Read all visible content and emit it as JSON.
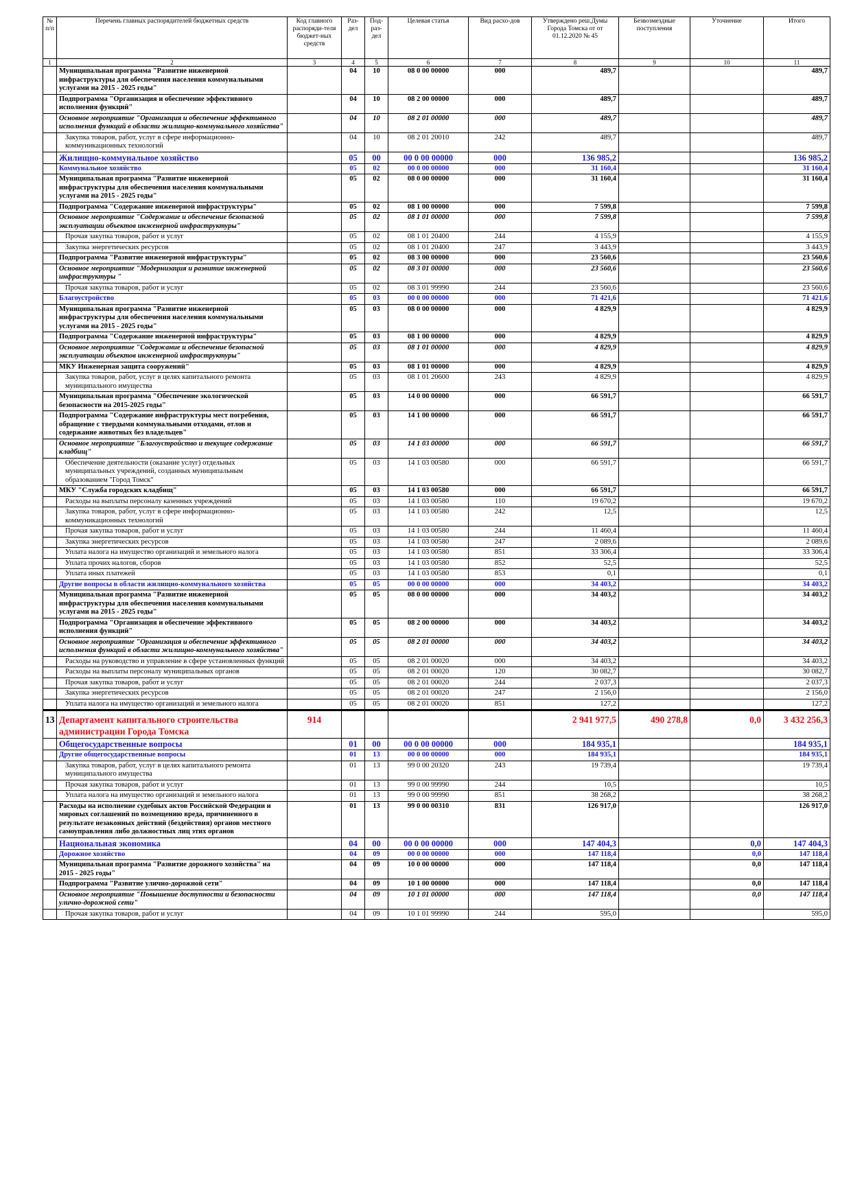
{
  "table": {
    "header": [
      "№ п/п",
      "Перечень главных распорядителей бюджетных средств",
      "Код главного распоряди-теля бюджет-ных средств",
      "Раз-дел",
      "Под-раз-дел",
      "Целевая статья",
      "Вид расхо-дов",
      "Утверждено реш.Думы Города Томска от от 01.12.2020 № 45",
      "Безвозмездные поступления",
      "Уточнение",
      "Итого"
    ],
    "column_numbers": [
      1,
      2,
      3,
      4,
      5,
      6,
      7,
      8,
      9,
      10,
      11
    ],
    "rows": [
      [
        null,
        "Муниципальная программа \"Развитие инженерной инфраструктуры для обеспечения населения коммунальными услугами на 2015 - 2025 годы\"",
        null,
        "04",
        "10",
        "08 0 00 00000",
        "000",
        "489,7",
        null,
        null,
        "489,7"
      ],
      [
        null,
        "Подпрограмма \"Организация и обеспечение эффективного исполнения функций\"",
        null,
        "04",
        "10",
        "08 2 00 00000",
        "000",
        "489,7",
        null,
        null,
        "489,7"
      ],
      [
        null,
        "Основное мероприятие \"Организация и обеспечение эффективного исполнения функций в области жилищно-коммунального хозяйства\"",
        null,
        "04",
        "10",
        "08 2 01 00000",
        "000",
        "489,7",
        null,
        null,
        "489,7"
      ],
      [
        null,
        "Закупка товаров, работ, услуг в сфере информационно-коммуникационных технологий",
        null,
        "04",
        "10",
        "08 2 01 20010",
        "242",
        "489,7",
        null,
        null,
        "489,7"
      ],
      [
        null,
        "Жилищно-коммунальное хозяйство",
        null,
        "05",
        "00",
        "00 0 00 00000",
        "000",
        "136 985,2",
        null,
        null,
        "136 985,2"
      ],
      [
        null,
        "Коммунальное хозяйство",
        null,
        "05",
        "02",
        "00 0 00 00000",
        "000",
        "31 160,4",
        null,
        null,
        "31 160,4"
      ],
      [
        null,
        "Муниципальная программа \"Развитие инженерной инфраструктуры для обеспечения населения коммунальными услугами на 2015 - 2025 годы\"",
        null,
        "05",
        "02",
        "08 0 00 00000",
        "000",
        "31 160,4",
        null,
        null,
        "31 160,4"
      ],
      [
        null,
        "Подпрограмма \"Содержание инженерной инфраструктуры\"",
        null,
        "05",
        "02",
        "08 1 00 00000",
        "000",
        "7 599,8",
        null,
        null,
        "7 599,8"
      ],
      [
        null,
        "Основное мероприятие \"Содержание и обеспечение безопасной эксплуатации объектов инженерной инфраструктуры\"",
        null,
        "05",
        "02",
        "08 1 01 00000",
        "000",
        "7 599,8",
        null,
        null,
        "7 599,8"
      ],
      [
        null,
        "Прочая закупка товаров, работ и услуг",
        null,
        "05",
        "02",
        "08 1 01 20400",
        "244",
        "4 155,9",
        null,
        null,
        "4 155,9"
      ],
      [
        null,
        "Закупка энергетических ресурсов",
        null,
        "05",
        "02",
        "08 1 01 20400",
        "247",
        "3 443,9",
        null,
        null,
        "3 443,9"
      ],
      [
        null,
        "Подпрограмма \"Развитие инженерной инфраструктуры\"",
        null,
        "05",
        "02",
        "08 3 00 00000",
        "000",
        "23 560,6",
        null,
        null,
        "23 560,6"
      ],
      [
        null,
        "Основное мероприятие \"Модернизация и развитие инженерной инфраструктуры \"",
        null,
        "05",
        "02",
        "08 3 01 00000",
        "000",
        "23 560,6",
        null,
        null,
        "23 560,6"
      ],
      [
        null,
        "Прочая закупка товаров, работ и услуг",
        null,
        "05",
        "02",
        "08 3 01 99990",
        "244",
        "23 560,6",
        null,
        null,
        "23 560,6"
      ],
      [
        null,
        "Благоустройство",
        null,
        "05",
        "03",
        "00 0 00 00000",
        "000",
        "71 421,6",
        null,
        null,
        "71 421,6"
      ],
      [
        null,
        "Муниципальная программа \"Развитие инженерной инфраструктуры для обеспечения населения коммунальными услугами на 2015 - 2025 годы\"",
        null,
        "05",
        "03",
        "08 0 00 00000",
        "000",
        "4 829,9",
        null,
        null,
        "4 829,9"
      ],
      [
        null,
        "Подпрограмма \"Содержание инженерной инфраструктуры\"",
        null,
        "05",
        "03",
        "08 1 00 00000",
        "000",
        "4 829,9",
        null,
        null,
        "4 829,9"
      ],
      [
        null,
        "Основное мероприятие \"Содержание и обеспечение безопасной эксплуатации объектов инженерной инфраструктуры\"",
        null,
        "05",
        "03",
        "08 1 01 00000",
        "000",
        "4 829,9",
        null,
        null,
        "4 829,9"
      ],
      [
        null,
        "МКУ Инженерная защита сооружений\"",
        null,
        "05",
        "03",
        "08 1 01 00000",
        "000",
        "4 829,9",
        null,
        null,
        "4 829,9"
      ],
      [
        null,
        "Закупка товаров, работ, услуг в целях капитального ремонта муниципального имущества",
        null,
        "05",
        "03",
        "08 1 01 20600",
        "243",
        "4 829,9",
        null,
        null,
        "4 829,9"
      ],
      [
        null,
        "Муниципальная программа \"Обеспечение экологической безопасности на 2015-2025 годы\"",
        null,
        "05",
        "03",
        "14 0 00 00000",
        "000",
        "66 591,7",
        null,
        null,
        "66 591,7"
      ],
      [
        null,
        "Подпрограмма \"Содержание инфраструктуры мест погребения, обращение с твердыми коммунальными отходами, отлов и содержание животных без владельцев\"",
        null,
        "05",
        "03",
        "14 1 00 00000",
        "000",
        "66 591,7",
        null,
        null,
        "66 591,7"
      ],
      [
        null,
        "Основное мероприятие \"Благоустройство и текущее содержание кладбищ\"",
        null,
        "05",
        "03",
        "14 1 03 00000",
        "000",
        "66 591,7",
        null,
        null,
        "66 591,7"
      ],
      [
        null,
        "Обеспечение деятельности (оказание услуг) отдельных муниципальных учреждений, созданных муниципальным образованием \"Город Томск\"",
        null,
        "05",
        "03",
        "14 1 03 00580",
        "000",
        "66 591,7",
        null,
        null,
        "66 591,7"
      ],
      [
        null,
        "МКУ \"Служба городских кладбищ\"",
        null,
        "05",
        "03",
        "14 1 03 00580",
        "000",
        "66 591,7",
        null,
        null,
        "66 591,7"
      ],
      [
        null,
        "Расходы на выплаты персоналу казенных учреждений",
        null,
        "05",
        "03",
        "14 1 03 00580",
        "110",
        "19 670,2",
        null,
        null,
        "19 670,2"
      ],
      [
        null,
        "Закупка товаров, работ, услуг в сфере информационно-коммуникационных технологий",
        null,
        "05",
        "03",
        "14 1 03 00580",
        "242",
        "12,5",
        null,
        null,
        "12,5"
      ],
      [
        null,
        "Прочая закупка товаров, работ и услуг",
        null,
        "05",
        "03",
        "14 1 03 00580",
        "244",
        "11 460,4",
        null,
        null,
        "11 460,4"
      ],
      [
        null,
        "Закупка энергетических ресурсов",
        null,
        "05",
        "03",
        "14 1 03 00580",
        "247",
        "2 089,6",
        null,
        null,
        "2 089,6"
      ],
      [
        null,
        "Уплата налога на имущество организаций и земельного налога",
        null,
        "05",
        "03",
        "14 1 03 00580",
        "851",
        "33 306,4",
        null,
        null,
        "33 306,4"
      ],
      [
        null,
        "Уплата прочих налогов, сборов",
        null,
        "05",
        "03",
        "14 1 03 00580",
        "852",
        "52,5",
        null,
        null,
        "52,5"
      ],
      [
        null,
        "Уплата иных платежей",
        null,
        "05",
        "03",
        "14 1 03 00580",
        "853",
        "0,1",
        null,
        null,
        "0,1"
      ],
      [
        null,
        "Другие вопросы в области жилищно-коммунального хозяйства",
        null,
        "05",
        "05",
        "00 0 00 00000",
        "000",
        "34 403,2",
        null,
        null,
        "34 403,2"
      ],
      [
        null,
        "Муниципальная программа \"Развитие инженерной инфраструктуры для обеспечения населения коммунальными услугами на 2015 - 2025 годы\"",
        null,
        "05",
        "05",
        "08 0 00 00000",
        "000",
        "34 403,2",
        null,
        null,
        "34 403,2"
      ],
      [
        null,
        "Подпрограмма \"Организация и обеспечение эффективного исполнения функций\"",
        null,
        "05",
        "05",
        "08 2 00 00000",
        "000",
        "34 403,2",
        null,
        null,
        "34 403,2"
      ],
      [
        null,
        "Основное мероприятие \"Организация и обеспечение эффективного исполнения функций в области жилищно-коммунального хозяйства\"",
        null,
        "05",
        "05",
        "08 2 01 00000",
        "000",
        "34 403,2",
        null,
        null,
        "34 403,2"
      ],
      [
        null,
        "Расходы на руководство и управление в сфере установленных функций",
        null,
        "05",
        "05",
        "08 2 01 00020",
        "000",
        "34 403,2",
        null,
        null,
        "34 403,2"
      ],
      [
        null,
        "Расходы на выплаты персоналу муниципальных органов",
        null,
        "05",
        "05",
        "08 2 01 00020",
        "120",
        "30 082,7",
        null,
        null,
        "30 082,7"
      ],
      [
        null,
        "Прочая закупка товаров, работ и услуг",
        null,
        "05",
        "05",
        "08 2 01 00020",
        "244",
        "2 037,3",
        null,
        null,
        "2 037,3"
      ],
      [
        null,
        "Закупка энергетических ресурсов",
        null,
        "05",
        "05",
        "08 2 01 00020",
        "247",
        "2 156,0",
        null,
        null,
        "2 156,0"
      ],
      [
        null,
        "Уплата налога на имущество организаций и земельного налога",
        null,
        "05",
        "05",
        "08 2 01 00020",
        "851",
        "127,2",
        null,
        null,
        "127,2"
      ],
      [
        "13",
        "Департамент капитального строительства администрации Города Томска",
        "914",
        null,
        null,
        null,
        null,
        "2 941 977,5",
        "490 278,8",
        "0,0",
        "3 432 256,3"
      ],
      [
        null,
        "Общегосударственные вопросы",
        null,
        "01",
        "00",
        "00 0 00 00000",
        "000",
        "184 935,1",
        null,
        null,
        "184 935,1"
      ],
      [
        null,
        "Другие общегосударственные вопросы",
        null,
        "01",
        "13",
        "00 0 00 00000",
        "000",
        "184 935,1",
        null,
        null,
        "184 935,1"
      ],
      [
        null,
        "Закупка товаров, работ, услуг в целях капитального ремонта муниципального имущества",
        null,
        "01",
        "13",
        "99 0 00 20320",
        "243",
        "19 739,4",
        null,
        null,
        "19 739,4"
      ],
      [
        null,
        "Прочая закупка товаров, работ и услуг",
        null,
        "01",
        "13",
        "99 0 00 99990",
        "244",
        "10,5",
        null,
        null,
        "10,5"
      ],
      [
        null,
        "Уплата налога на имущество организаций и земельного налога",
        null,
        "01",
        "13",
        "99 0 00 99990",
        "851",
        "38 268,2",
        null,
        null,
        "38 268,2"
      ],
      [
        null,
        "Расходы на исполнение судебных актов Российской Федерации и мировых соглашений по возмещению вреда, причиненного в результате незаконных действий (бездействия) органов местного самоуправления либо должностных лиц этих органов",
        null,
        "01",
        "13",
        "99 0 00 00310",
        "831",
        "126 917,0",
        null,
        null,
        "126 917,0"
      ],
      [
        null,
        "Национальная экономика",
        null,
        "04",
        "00",
        "00 0 00 00000",
        "000",
        "147 404,3",
        null,
        "0,0",
        "147 404,3"
      ],
      [
        null,
        "Дорожное хозяйство",
        null,
        "04",
        "09",
        "00 0 00 00000",
        "000",
        "147 118,4",
        null,
        "0,0",
        "147 118,4"
      ],
      [
        null,
        "Муниципальная программа \"Развитие дорожного хозяйства\" на 2015 - 2025 годы\"",
        null,
        "04",
        "09",
        "10 0 00 00000",
        "000",
        "147 118,4",
        null,
        "0,0",
        "147 118,4"
      ],
      [
        null,
        "Подпрограмма \"Развитие улично-дорожной сети\"",
        null,
        "04",
        "09",
        "10 1 00 00000",
        "000",
        "147 118,4",
        null,
        "0,0",
        "147 118,4"
      ],
      [
        null,
        "Основное мероприятие \"Повышение доступности и безопасности улично-дорожной сети\"",
        null,
        "04",
        "09",
        "10 1 01 00000",
        "000",
        "147 118,4",
        null,
        "0,0",
        "147 118,4"
      ],
      [
        null,
        "Прочая закупка товаров, работ и услуг",
        null,
        "04",
        "09",
        "10 1 01 99990",
        "244",
        "595,0",
        null,
        null,
        "595,0"
      ]
    ]
  }
}
